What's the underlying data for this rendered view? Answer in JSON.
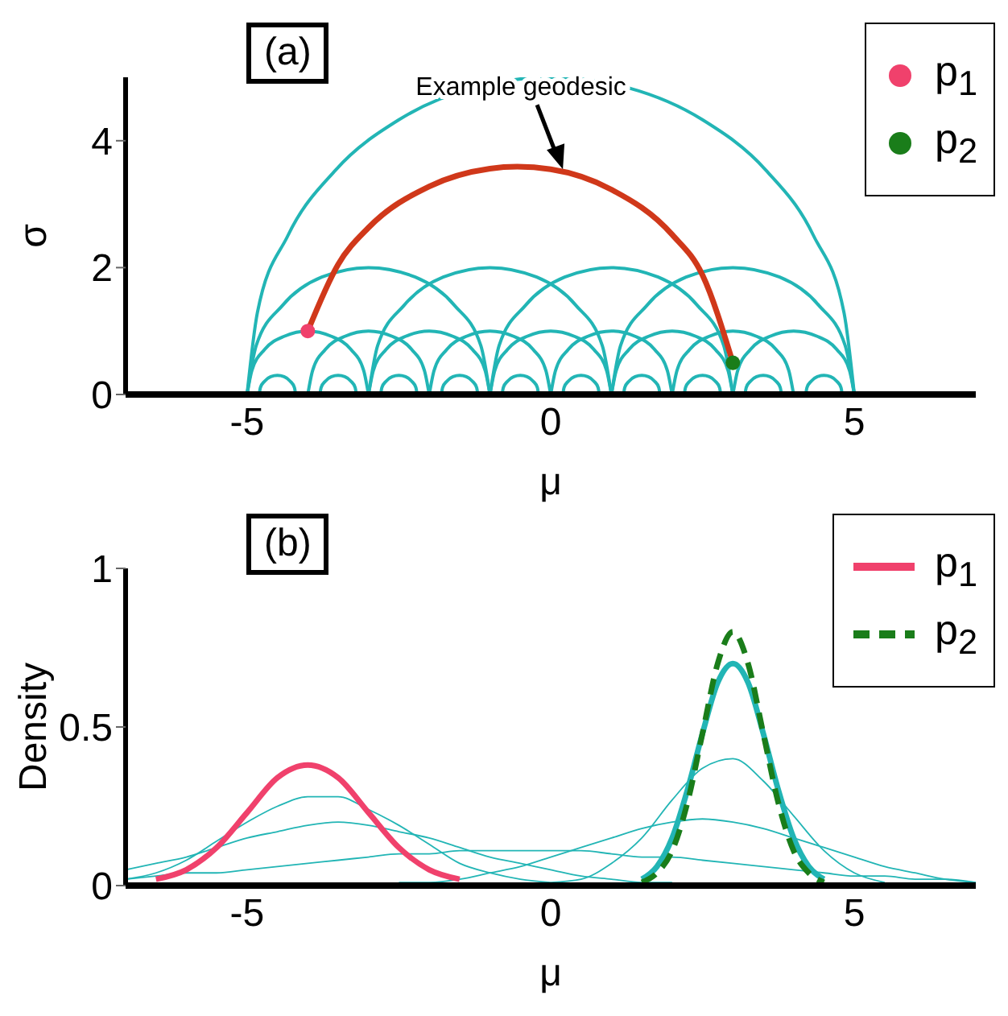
{
  "chart_data": [
    {
      "type": "line",
      "title": "(a)",
      "xlabel": "μ",
      "ylabel": "σ",
      "xlim": [
        -7,
        7
      ],
      "xticks": [
        -5,
        0,
        5
      ],
      "ylim": [
        0,
        5
      ],
      "yticks": [
        0,
        2,
        4
      ],
      "legend": "top right",
      "annotations": [
        {
          "text": "Example geodesic",
          "x": 0.2,
          "y": 3.55
        }
      ],
      "series": [
        {
          "color": "#22b5b5",
          "x": [
            -5,
            -4.83,
            -4.33,
            -3.54,
            -2.5,
            -1.29,
            0,
            1.29,
            2.5,
            3.54,
            4.33,
            4.83,
            5
          ],
          "values": [
            0,
            1.29,
            2.5,
            3.54,
            4.33,
            4.83,
            5,
            4.83,
            4.33,
            3.54,
            2.5,
            1.29,
            0
          ]
        },
        {
          "color": "#22b5b5",
          "x": [
            -5,
            -4.85,
            -4.41,
            -3.77,
            -3,
            -2.23,
            -1.59,
            -1.15,
            -1
          ],
          "values": [
            0,
            0.77,
            1.41,
            1.85,
            2,
            1.85,
            1.41,
            0.77,
            0
          ]
        },
        {
          "color": "#22b5b5",
          "x": [
            -3,
            -2.85,
            -2.41,
            -1.77,
            -1,
            -0.23,
            0.41,
            0.85,
            1
          ],
          "values": [
            0,
            0.77,
            1.41,
            1.85,
            2,
            1.85,
            1.41,
            0.77,
            0
          ]
        },
        {
          "color": "#22b5b5",
          "x": [
            -1,
            -0.85,
            -0.41,
            0.23,
            1,
            1.77,
            2.41,
            2.85,
            3
          ],
          "values": [
            0,
            0.77,
            1.41,
            1.85,
            2,
            1.85,
            1.41,
            0.77,
            0
          ]
        },
        {
          "color": "#22b5b5",
          "x": [
            1,
            1.15,
            1.59,
            2.23,
            3,
            3.77,
            4.41,
            4.85,
            5
          ],
          "values": [
            0,
            0.77,
            1.41,
            1.85,
            2,
            1.85,
            1.41,
            0.77,
            0
          ]
        },
        {
          "color": "#22b5b5",
          "x": [
            -5,
            -4.92,
            -4.71,
            -4.38,
            -4,
            -3.62,
            -3.29,
            -3.08,
            -3
          ],
          "values": [
            0,
            0.38,
            0.71,
            0.92,
            1,
            0.92,
            0.71,
            0.38,
            0
          ]
        },
        {
          "color": "#22b5b5",
          "x": [
            -4,
            -3.92,
            -3.71,
            -3.38,
            -3,
            -2.62,
            -2.29,
            -2.08,
            -2
          ],
          "values": [
            0,
            0.38,
            0.71,
            0.92,
            1,
            0.92,
            0.71,
            0.38,
            0
          ]
        },
        {
          "color": "#22b5b5",
          "x": [
            -3,
            -2.92,
            -2.71,
            -2.38,
            -2,
            -1.62,
            -1.29,
            -1.08,
            -1
          ],
          "values": [
            0,
            0.38,
            0.71,
            0.92,
            1,
            0.92,
            0.71,
            0.38,
            0
          ]
        },
        {
          "color": "#22b5b5",
          "x": [
            -2,
            -1.92,
            -1.71,
            -1.38,
            -1,
            -0.62,
            -0.29,
            -0.08,
            0
          ],
          "values": [
            0,
            0.38,
            0.71,
            0.92,
            1,
            0.92,
            0.71,
            0.38,
            0
          ]
        },
        {
          "color": "#22b5b5",
          "x": [
            -1,
            -0.92,
            -0.71,
            -0.38,
            0,
            0.38,
            0.71,
            0.92,
            1
          ],
          "values": [
            0,
            0.38,
            0.71,
            0.92,
            1,
            0.92,
            0.71,
            0.38,
            0
          ]
        },
        {
          "color": "#22b5b5",
          "x": [
            0,
            0.08,
            0.29,
            0.62,
            1,
            1.38,
            1.71,
            1.92,
            2
          ],
          "values": [
            0,
            0.38,
            0.71,
            0.92,
            1,
            0.92,
            0.71,
            0.38,
            0
          ]
        },
        {
          "color": "#22b5b5",
          "x": [
            1,
            1.08,
            1.29,
            1.62,
            2,
            2.38,
            2.71,
            2.92,
            3
          ],
          "values": [
            0,
            0.38,
            0.71,
            0.92,
            1,
            0.92,
            0.71,
            0.38,
            0
          ]
        },
        {
          "color": "#22b5b5",
          "x": [
            2,
            2.08,
            2.29,
            2.62,
            3,
            3.38,
            3.71,
            3.92,
            4
          ],
          "values": [
            0,
            0.38,
            0.71,
            0.92,
            1,
            0.92,
            0.71,
            0.38,
            0
          ]
        },
        {
          "color": "#22b5b5",
          "x": [
            3,
            3.08,
            3.29,
            3.62,
            4,
            4.38,
            4.71,
            4.92,
            5
          ],
          "values": [
            0,
            0.38,
            0.71,
            0.92,
            1,
            0.92,
            0.71,
            0.38,
            0
          ]
        },
        {
          "color": "#22b5b5",
          "x": [
            -4.8,
            -4.78,
            -4.71,
            -4.61,
            -4.5,
            -4.39,
            -4.29,
            -4.22,
            -4.2
          ],
          "values": [
            0,
            0.11,
            0.21,
            0.28,
            0.3,
            0.28,
            0.21,
            0.11,
            0
          ]
        },
        {
          "color": "#22b5b5",
          "x": [
            -3.8,
            -3.78,
            -3.71,
            -3.61,
            -3.5,
            -3.39,
            -3.29,
            -3.22,
            -3.2
          ],
          "values": [
            0,
            0.11,
            0.21,
            0.28,
            0.3,
            0.28,
            0.21,
            0.11,
            0
          ]
        },
        {
          "color": "#22b5b5",
          "x": [
            -2.8,
            -2.78,
            -2.71,
            -2.61,
            -2.5,
            -2.39,
            -2.29,
            -2.22,
            -2.2
          ],
          "values": [
            0,
            0.11,
            0.21,
            0.28,
            0.3,
            0.28,
            0.21,
            0.11,
            0
          ]
        },
        {
          "color": "#22b5b5",
          "x": [
            -1.8,
            -1.78,
            -1.71,
            -1.61,
            -1.5,
            -1.39,
            -1.29,
            -1.22,
            -1.2
          ],
          "values": [
            0,
            0.11,
            0.21,
            0.28,
            0.3,
            0.28,
            0.21,
            0.11,
            0
          ]
        },
        {
          "color": "#22b5b5",
          "x": [
            -0.8,
            -0.78,
            -0.71,
            -0.61,
            -0.5,
            -0.39,
            -0.29,
            -0.22,
            -0.2
          ],
          "values": [
            0,
            0.11,
            0.21,
            0.28,
            0.3,
            0.28,
            0.21,
            0.11,
            0
          ]
        },
        {
          "color": "#22b5b5",
          "x": [
            0.2,
            0.22,
            0.29,
            0.39,
            0.5,
            0.61,
            0.71,
            0.78,
            0.8
          ],
          "values": [
            0,
            0.11,
            0.21,
            0.28,
            0.3,
            0.28,
            0.21,
            0.11,
            0
          ]
        },
        {
          "color": "#22b5b5",
          "x": [
            1.2,
            1.22,
            1.29,
            1.39,
            1.5,
            1.61,
            1.71,
            1.78,
            1.8
          ],
          "values": [
            0,
            0.11,
            0.21,
            0.28,
            0.3,
            0.28,
            0.21,
            0.11,
            0
          ]
        },
        {
          "color": "#22b5b5",
          "x": [
            2.2,
            2.22,
            2.29,
            2.39,
            2.5,
            2.61,
            2.71,
            2.78,
            2.8
          ],
          "values": [
            0,
            0.11,
            0.21,
            0.28,
            0.3,
            0.28,
            0.21,
            0.11,
            0
          ]
        },
        {
          "color": "#22b5b5",
          "x": [
            3.2,
            3.22,
            3.29,
            3.39,
            3.5,
            3.61,
            3.71,
            3.78,
            3.8
          ],
          "values": [
            0,
            0.11,
            0.21,
            0.28,
            0.3,
            0.28,
            0.21,
            0.11,
            0
          ]
        },
        {
          "color": "#22b5b5",
          "x": [
            4.2,
            4.22,
            4.29,
            4.39,
            4.5,
            4.61,
            4.71,
            4.78,
            4.8
          ],
          "values": [
            0,
            0.11,
            0.21,
            0.28,
            0.3,
            0.28,
            0.21,
            0.11,
            0
          ]
        },
        {
          "color": "#d0381a",
          "x": [
            -4,
            -3.5,
            -3,
            -2,
            -1,
            -0.55,
            0,
            1,
            2,
            2.5,
            3
          ],
          "values": [
            1,
            2.05,
            2.63,
            3.28,
            3.56,
            3.59,
            3.55,
            3.23,
            2.52,
            1.88,
            0.5
          ]
        },
        {
          "type": "scatter",
          "name": "p$_{1}$",
          "color": "#f0416c",
          "marker": "circle",
          "x": [
            -4
          ],
          "values": [
            1
          ]
        },
        {
          "type": "scatter",
          "name": "p$_{2}$",
          "color": "#1a7d1a",
          "marker": "circle",
          "x": [
            3
          ],
          "values": [
            0.5
          ]
        }
      ]
    },
    {
      "type": "line",
      "title": "(b)",
      "xlabel": "μ",
      "ylabel": "Density",
      "xlim": [
        -7,
        7
      ],
      "xticks": [
        -5,
        0,
        5
      ],
      "ylim": [
        0,
        1
      ],
      "yticks": [
        0,
        0.5,
        1
      ],
      "legend": "top right",
      "x": [
        -7,
        -6.5,
        -6,
        -5.5,
        -5,
        -4.5,
        -4,
        -3.5,
        -3,
        -2.5,
        -2,
        -1.5,
        -1,
        -0.5,
        0,
        0.5,
        1,
        1.5,
        2,
        2.5,
        3,
        3.5,
        4,
        4.5,
        5,
        5.5,
        6,
        6.5,
        7
      ],
      "series": [
        {
          "color": "#22b5b5",
          "values": [
            0.02,
            0.03,
            0.04,
            0.04,
            0.05,
            0.06,
            0.07,
            0.08,
            0.09,
            0.1,
            0.1,
            0.11,
            0.11,
            0.11,
            0.11,
            0.11,
            0.1,
            0.09,
            0.09,
            0.08,
            0.07,
            0.06,
            0.05,
            0.04,
            0.03,
            0.03,
            0.02,
            0.02,
            0.01
          ]
        },
        {
          "color": "#22b5b5",
          "values": [
            0.05,
            0.07,
            0.09,
            0.12,
            0.15,
            0.17,
            0.19,
            0.2,
            0.19,
            0.17,
            0.15,
            0.12,
            0.09,
            0.07,
            0.05,
            0.03,
            0.02,
            0.01,
            0.01,
            null,
            null,
            null,
            null,
            null,
            null,
            null,
            null,
            null,
            null
          ]
        },
        {
          "color": "#22b5b5",
          "values": [
            0.02,
            0.04,
            0.08,
            0.14,
            0.2,
            0.25,
            0.28,
            0.28,
            0.24,
            0.19,
            0.13,
            0.07,
            0.04,
            0.02,
            0.01,
            null,
            null,
            null,
            null,
            null,
            null,
            null,
            null,
            null,
            null,
            null,
            null,
            null,
            null
          ]
        },
        {
          "color": "#22b5b5",
          "values": [
            null,
            null,
            null,
            null,
            null,
            null,
            null,
            null,
            null,
            0.01,
            0.01,
            0.02,
            0.04,
            0.06,
            0.09,
            0.12,
            0.15,
            0.18,
            0.2,
            0.21,
            0.2,
            0.18,
            0.15,
            0.12,
            0.09,
            0.06,
            0.04,
            0.02,
            0.01
          ]
        },
        {
          "color": "#22b5b5",
          "values": [
            null,
            null,
            null,
            null,
            null,
            null,
            null,
            null,
            null,
            null,
            null,
            null,
            null,
            null,
            0.01,
            0.02,
            0.07,
            0.15,
            0.27,
            0.37,
            0.4,
            0.33,
            0.22,
            0.11,
            0.04,
            0.01,
            null,
            null,
            null
          ]
        },
        {
          "color": "#22b5b5",
          "x": [
            1.5,
            1.75,
            2,
            2.25,
            2.5,
            2.75,
            3,
            3.25,
            3.5,
            3.75,
            4,
            4.25,
            4.5
          ],
          "values": [
            0.02,
            0.06,
            0.15,
            0.3,
            0.48,
            0.64,
            0.7,
            0.64,
            0.48,
            0.3,
            0.15,
            0.06,
            0.02
          ]
        },
        {
          "name": "p$_{1}$",
          "color": "#f0416c",
          "values": [
            null,
            0.02,
            0.05,
            0.12,
            0.23,
            0.34,
            0.38,
            0.34,
            0.23,
            0.12,
            0.05,
            0.02,
            null,
            null,
            null,
            null,
            null,
            null,
            null,
            null,
            null,
            null,
            null,
            null,
            null,
            null,
            null,
            null,
            null
          ]
        },
        {
          "name": "p$_{2}$",
          "color": "#1a7d1a",
          "line_style": "dashed",
          "x": [
            1.5,
            1.75,
            2,
            2.25,
            2.5,
            2.75,
            3,
            3.25,
            3.5,
            3.75,
            4,
            4.25,
            4.5
          ],
          "values": [
            0.01,
            0.04,
            0.11,
            0.26,
            0.48,
            0.7,
            0.8,
            0.7,
            0.48,
            0.26,
            0.11,
            0.04,
            0.01
          ]
        }
      ]
    }
  ]
}
